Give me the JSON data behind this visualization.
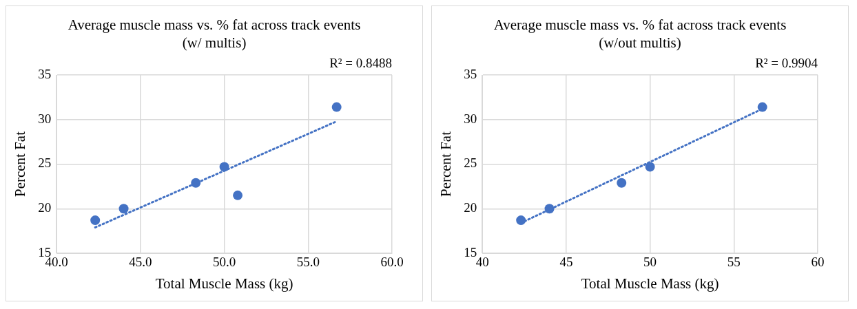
{
  "chart_data": [
    {
      "type": "scatter",
      "title": "Average muscle mass vs. % fat across track events (w/ multis)",
      "xlabel": "Total Muscle Mass (kg)",
      "ylabel": "Percent Fat",
      "annotations": [
        "R² = 0.8488"
      ],
      "xlim": [
        40,
        60
      ],
      "xticks": [
        {
          "value": 40,
          "label": "40.0"
        },
        {
          "value": 45,
          "label": "45.0"
        },
        {
          "value": 50,
          "label": "50.0"
        },
        {
          "value": 55,
          "label": "55.0"
        },
        {
          "value": 60,
          "label": "60.0"
        }
      ],
      "ylim": [
        15,
        35
      ],
      "yticks": [
        15,
        20,
        25,
        30,
        35
      ],
      "grid": true,
      "legend": false,
      "series": [
        {
          "type": "scatter",
          "color": "#4472c4",
          "marker": "circle",
          "x": [
            42.3,
            44.0,
            48.3,
            50.0,
            50.8,
            56.7
          ],
          "values": [
            18.7,
            20.0,
            22.9,
            24.7,
            21.5,
            31.4
          ]
        },
        {
          "type": "line",
          "color": "#4472c4",
          "marker": "none",
          "line_style": "dotted",
          "x": [
            42.3,
            56.7
          ],
          "values": [
            17.9,
            29.8
          ]
        }
      ]
    },
    {
      "type": "scatter",
      "title": "Average muscle mass vs. % fat across track events (w/out multis)",
      "xlabel": "Total Muscle Mass (kg)",
      "ylabel": "Percent Fat",
      "annotations": [
        "R² = 0.9904"
      ],
      "xlim": [
        40,
        60
      ],
      "xticks": [
        40,
        45,
        50,
        55,
        60
      ],
      "ylim": [
        15,
        35
      ],
      "yticks": [
        15,
        20,
        25,
        30,
        35
      ],
      "grid": true,
      "legend": false,
      "series": [
        {
          "type": "scatter",
          "color": "#4472c4",
          "marker": "circle",
          "x": [
            42.3,
            44.0,
            48.3,
            50.0,
            56.7
          ],
          "values": [
            18.7,
            20.0,
            22.9,
            24.7,
            31.4
          ]
        },
        {
          "type": "line",
          "color": "#4472c4",
          "marker": "none",
          "line_style": "dotted",
          "x": [
            42.3,
            56.7
          ],
          "values": [
            18.4,
            31.2
          ]
        }
      ]
    }
  ]
}
